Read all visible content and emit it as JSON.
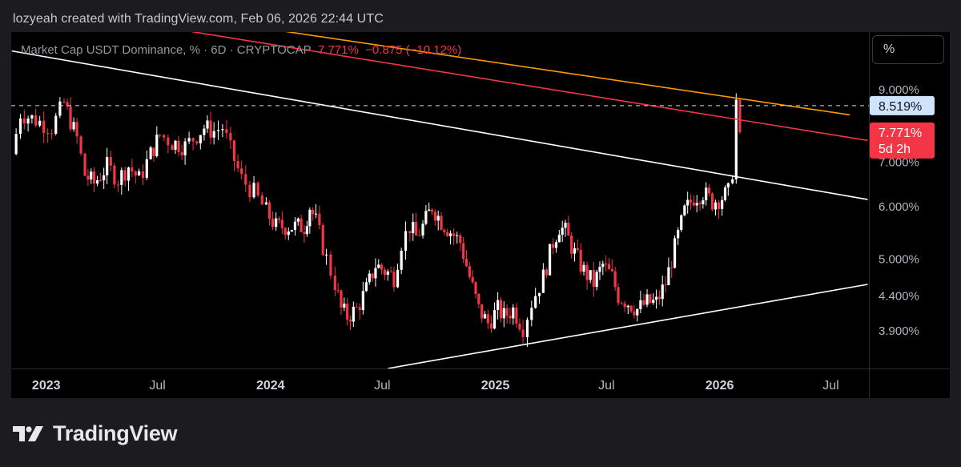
{
  "credit": "lozyeah created with TradingView.com, Feb 06, 2026 22:44 UTC",
  "header": {
    "symbol": "Market Cap USDT Dominance, % · 6D · CRYPTOCAP",
    "last": "7.771%",
    "change": "−0.875",
    "change_pct": "(−10.12%)"
  },
  "scale_button": "%",
  "brand": {
    "name": "TradingView",
    "logo_icon": "tradingview-logo-icon"
  },
  "colors": {
    "up": "#ffffff",
    "down": "#f23645",
    "background": "#000000",
    "trendline": "#ffffff",
    "resistance_red": "#f23645",
    "resistance_orange": "#ff9800"
  },
  "chart_data": {
    "type": "candlestick",
    "title": "Market Cap USDT Dominance, % · 6D · CRYPTOCAP",
    "y_scale": "log",
    "y_ticks": [
      {
        "value": 9.0,
        "label": "9.000%"
      },
      {
        "value": 7.0,
        "label": "7.000%"
      },
      {
        "value": 6.0,
        "label": "6.000%"
      },
      {
        "value": 5.0,
        "label": "5.000%"
      },
      {
        "value": 4.4,
        "label": "4.400%"
      },
      {
        "value": 3.9,
        "label": "3.900%"
      }
    ],
    "x_ticks": [
      {
        "date": "2023-01-01",
        "label": "2023",
        "bold": true
      },
      {
        "date": "2023-07-01",
        "label": "Jul",
        "bold": false
      },
      {
        "date": "2024-01-01",
        "label": "2024",
        "bold": true
      },
      {
        "date": "2024-07-01",
        "label": "Jul",
        "bold": false
      },
      {
        "date": "2025-01-01",
        "label": "2025",
        "bold": true
      },
      {
        "date": "2025-07-01",
        "label": "Jul",
        "bold": false
      },
      {
        "date": "2026-01-01",
        "label": "2026",
        "bold": true
      },
      {
        "date": "2026-07-01",
        "label": "Jul",
        "bold": false
      }
    ],
    "x_range": [
      "2022-11-05",
      "2026-09-01"
    ],
    "y_range": [
      3.42,
      11.0
    ],
    "closes": [
      [
        "2022-11-06",
        7.2
      ],
      [
        "2022-11-20",
        8.3
      ],
      [
        "2022-12-15",
        8.1
      ],
      [
        "2023-01-10",
        7.9
      ],
      [
        "2023-01-30",
        8.6
      ],
      [
        "2023-02-20",
        7.6
      ],
      [
        "2023-03-05",
        6.7
      ],
      [
        "2023-03-20",
        6.5
      ],
      [
        "2023-04-10",
        6.9
      ],
      [
        "2023-04-28",
        6.6
      ],
      [
        "2023-05-15",
        6.9
      ],
      [
        "2023-06-01",
        6.6
      ],
      [
        "2023-06-20",
        7.2
      ],
      [
        "2023-07-05",
        7.7
      ],
      [
        "2023-07-25",
        7.5
      ],
      [
        "2023-08-15",
        7.4
      ],
      [
        "2023-08-28",
        7.6
      ],
      [
        "2023-09-15",
        7.9
      ],
      [
        "2023-10-01",
        7.8
      ],
      [
        "2023-10-15",
        7.9
      ],
      [
        "2023-10-28",
        7.3
      ],
      [
        "2023-11-15",
        6.6
      ],
      [
        "2023-12-05",
        6.3
      ],
      [
        "2023-12-25",
        5.9
      ],
      [
        "2024-01-10",
        5.6
      ],
      [
        "2024-01-25",
        5.6
      ],
      [
        "2024-02-10",
        5.6
      ],
      [
        "2024-02-25",
        5.6
      ],
      [
        "2024-03-05",
        6.0
      ],
      [
        "2024-03-15",
        5.7
      ],
      [
        "2024-04-01",
        5.0
      ],
      [
        "2024-04-15",
        4.6
      ],
      [
        "2024-04-25",
        4.2
      ],
      [
        "2024-05-05",
        4.1
      ],
      [
        "2024-05-20",
        4.2
      ],
      [
        "2024-06-05",
        4.5
      ],
      [
        "2024-06-20",
        4.9
      ],
      [
        "2024-07-05",
        4.8
      ],
      [
        "2024-07-20",
        4.7
      ],
      [
        "2024-08-01",
        5.3
      ],
      [
        "2024-08-15",
        5.6
      ],
      [
        "2024-08-25",
        5.4
      ],
      [
        "2024-09-05",
        5.6
      ],
      [
        "2024-09-20",
        6.0
      ],
      [
        "2024-10-05",
        5.7
      ],
      [
        "2024-10-20",
        5.5
      ],
      [
        "2024-11-05",
        5.3
      ],
      [
        "2024-11-20",
        4.7
      ],
      [
        "2024-12-05",
        4.2
      ],
      [
        "2024-12-20",
        4.0
      ],
      [
        "2025-01-05",
        4.2
      ],
      [
        "2025-01-15",
        4.1
      ],
      [
        "2025-01-30",
        4.2
      ],
      [
        "2025-02-15",
        3.95
      ],
      [
        "2025-03-01",
        4.3
      ],
      [
        "2025-03-20",
        4.7
      ],
      [
        "2025-04-05",
        5.3
      ],
      [
        "2025-04-15",
        5.6
      ],
      [
        "2025-04-25",
        5.5
      ],
      [
        "2025-05-10",
        5.1
      ],
      [
        "2025-05-25",
        4.8
      ],
      [
        "2025-06-10",
        4.6
      ],
      [
        "2025-06-25",
        4.9
      ],
      [
        "2025-07-10",
        4.7
      ],
      [
        "2025-07-20",
        4.4
      ],
      [
        "2025-08-05",
        4.3
      ],
      [
        "2025-08-20",
        4.2
      ],
      [
        "2025-09-05",
        4.3
      ],
      [
        "2025-09-20",
        4.3
      ],
      [
        "2025-10-05",
        4.6
      ],
      [
        "2025-10-20",
        5.2
      ],
      [
        "2025-11-05",
        5.9
      ],
      [
        "2025-11-20",
        6.2
      ],
      [
        "2025-12-05",
        6.3
      ],
      [
        "2025-12-20",
        6.1
      ],
      [
        "2026-01-05",
        6.2
      ],
      [
        "2026-01-15",
        6.3
      ],
      [
        "2026-01-22",
        6.8
      ],
      [
        "2026-01-28",
        8.65
      ],
      [
        "2026-02-03",
        7.771
      ]
    ],
    "trendlines": [
      {
        "name": "descending-white",
        "color": "#ffffff",
        "from": [
          "2022-11-06",
          10.3
        ],
        "to": [
          "2026-08-30",
          6.15
        ]
      },
      {
        "name": "ascending-white",
        "color": "#ffffff",
        "from": [
          "2024-07-10",
          3.42
        ],
        "to": [
          "2026-08-30",
          4.58
        ]
      },
      {
        "name": "resistance-red",
        "color": "#f23645",
        "from": [
          "2022-12-20",
          12.0
        ],
        "to": [
          "2026-08-30",
          7.55
        ]
      },
      {
        "name": "resistance-orange",
        "color": "#ff9800",
        "from": [
          "2023-05-01",
          12.0
        ],
        "to": [
          "2026-08-01",
          8.25
        ]
      }
    ],
    "price_labels": [
      {
        "value": 8.519,
        "text": "8.519%",
        "style": "light",
        "dashed_line": true
      },
      {
        "value": 7.771,
        "text": "7.771%",
        "sub": "5d 2h",
        "style": "red"
      }
    ]
  }
}
